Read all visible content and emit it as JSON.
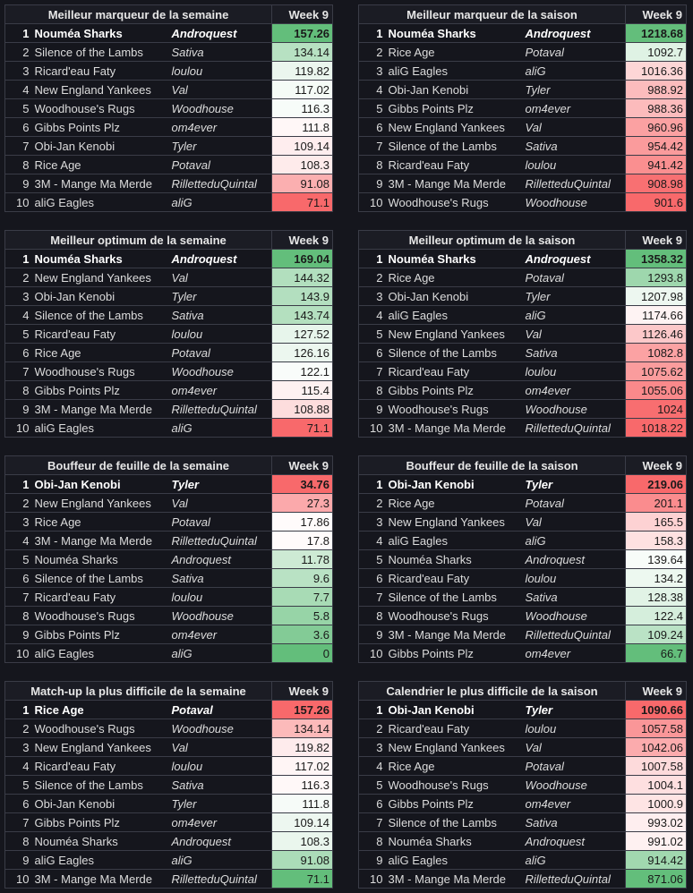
{
  "tables": [
    {
      "title": "Meilleur marqueur de la semaine",
      "week": "Week 9",
      "scale": "high-good",
      "rows": [
        {
          "rank": "1",
          "team": "Nouméa Sharks",
          "owner": "Androquest",
          "score": "157.26"
        },
        {
          "rank": "2",
          "team": "Silence of the Lambs",
          "owner": "Sativa",
          "score": "134.14"
        },
        {
          "rank": "3",
          "team": "Ricard'eau Faty",
          "owner": "loulou",
          "score": "119.82"
        },
        {
          "rank": "4",
          "team": "New England Yankees",
          "owner": "Val",
          "score": "117.02"
        },
        {
          "rank": "5",
          "team": "Woodhouse's Rugs",
          "owner": "Woodhouse",
          "score": "116.3"
        },
        {
          "rank": "6",
          "team": "Gibbs Points Plz",
          "owner": "om4ever",
          "score": "111.8"
        },
        {
          "rank": "7",
          "team": "Obi-Jan Kenobi",
          "owner": "Tyler",
          "score": "109.14"
        },
        {
          "rank": "8",
          "team": "Rice Age",
          "owner": "Potaval",
          "score": "108.3"
        },
        {
          "rank": "9",
          "team": "3M - Mange Ma Merde",
          "owner": "RilletteduQuintal",
          "score": "91.08"
        },
        {
          "rank": "10",
          "team": "aliG Eagles",
          "owner": "aliG",
          "score": "71.1"
        }
      ]
    },
    {
      "title": "Meilleur marqueur de la saison",
      "week": "Week 9",
      "scale": "high-good",
      "rows": [
        {
          "rank": "1",
          "team": "Nouméa Sharks",
          "owner": "Androquest",
          "score": "1218.68"
        },
        {
          "rank": "2",
          "team": "Rice Age",
          "owner": "Potaval",
          "score": "1092.7"
        },
        {
          "rank": "3",
          "team": "aliG Eagles",
          "owner": "aliG",
          "score": "1016.36"
        },
        {
          "rank": "4",
          "team": "Obi-Jan Kenobi",
          "owner": "Tyler",
          "score": "988.92"
        },
        {
          "rank": "5",
          "team": "Gibbs Points Plz",
          "owner": "om4ever",
          "score": "988.36"
        },
        {
          "rank": "6",
          "team": "New England Yankees",
          "owner": "Val",
          "score": "960.96"
        },
        {
          "rank": "7",
          "team": "Silence of the Lambs",
          "owner": "Sativa",
          "score": "954.42"
        },
        {
          "rank": "8",
          "team": "Ricard'eau Faty",
          "owner": "loulou",
          "score": "941.42"
        },
        {
          "rank": "9",
          "team": "3M - Mange Ma Merde",
          "owner": "RilletteduQuintal",
          "score": "908.98"
        },
        {
          "rank": "10",
          "team": "Woodhouse's Rugs",
          "owner": "Woodhouse",
          "score": "901.6"
        }
      ]
    },
    {
      "title": "Meilleur optimum de la semaine",
      "week": "Week 9",
      "scale": "high-good",
      "rows": [
        {
          "rank": "1",
          "team": "Nouméa Sharks",
          "owner": "Androquest",
          "score": "169.04"
        },
        {
          "rank": "2",
          "team": "New England Yankees",
          "owner": "Val",
          "score": "144.32"
        },
        {
          "rank": "3",
          "team": "Obi-Jan Kenobi",
          "owner": "Tyler",
          "score": "143.9"
        },
        {
          "rank": "4",
          "team": "Silence of the Lambs",
          "owner": "Sativa",
          "score": "143.74"
        },
        {
          "rank": "5",
          "team": "Ricard'eau Faty",
          "owner": "loulou",
          "score": "127.52"
        },
        {
          "rank": "6",
          "team": "Rice Age",
          "owner": "Potaval",
          "score": "126.16"
        },
        {
          "rank": "7",
          "team": "Woodhouse's Rugs",
          "owner": "Woodhouse",
          "score": "122.1"
        },
        {
          "rank": "8",
          "team": "Gibbs Points Plz",
          "owner": "om4ever",
          "score": "115.4"
        },
        {
          "rank": "9",
          "team": "3M - Mange Ma Merde",
          "owner": "RilletteduQuintal",
          "score": "108.88"
        },
        {
          "rank": "10",
          "team": "aliG Eagles",
          "owner": "aliG",
          "score": "71.1"
        }
      ]
    },
    {
      "title": "Meilleur optimum de la saison",
      "week": "Week 9",
      "scale": "high-good",
      "rows": [
        {
          "rank": "1",
          "team": "Nouméa Sharks",
          "owner": "Androquest",
          "score": "1358.32"
        },
        {
          "rank": "2",
          "team": "Rice Age",
          "owner": "Potaval",
          "score": "1293.8"
        },
        {
          "rank": "3",
          "team": "Obi-Jan Kenobi",
          "owner": "Tyler",
          "score": "1207.98"
        },
        {
          "rank": "4",
          "team": "aliG Eagles",
          "owner": "aliG",
          "score": "1174.66"
        },
        {
          "rank": "5",
          "team": "New England Yankees",
          "owner": "Val",
          "score": "1126.46"
        },
        {
          "rank": "6",
          "team": "Silence of the Lambs",
          "owner": "Sativa",
          "score": "1082.8"
        },
        {
          "rank": "7",
          "team": "Ricard'eau Faty",
          "owner": "loulou",
          "score": "1075.62"
        },
        {
          "rank": "8",
          "team": "Gibbs Points Plz",
          "owner": "om4ever",
          "score": "1055.06"
        },
        {
          "rank": "9",
          "team": "Woodhouse's Rugs",
          "owner": "Woodhouse",
          "score": "1024"
        },
        {
          "rank": "10",
          "team": "3M - Mange Ma Merde",
          "owner": "RilletteduQuintal",
          "score": "1018.22"
        }
      ]
    },
    {
      "title": "Bouffeur de feuille de la semaine",
      "week": "Week 9",
      "scale": "high-bad",
      "rows": [
        {
          "rank": "1",
          "team": "Obi-Jan Kenobi",
          "owner": "Tyler",
          "score": "34.76"
        },
        {
          "rank": "2",
          "team": "New England Yankees",
          "owner": "Val",
          "score": "27.3"
        },
        {
          "rank": "3",
          "team": "Rice Age",
          "owner": "Potaval",
          "score": "17.86"
        },
        {
          "rank": "4",
          "team": "3M - Mange Ma Merde",
          "owner": "RilletteduQuintal",
          "score": "17.8"
        },
        {
          "rank": "5",
          "team": "Nouméa Sharks",
          "owner": "Androquest",
          "score": "11.78"
        },
        {
          "rank": "6",
          "team": "Silence of the Lambs",
          "owner": "Sativa",
          "score": "9.6"
        },
        {
          "rank": "7",
          "team": "Ricard'eau Faty",
          "owner": "loulou",
          "score": "7.7"
        },
        {
          "rank": "8",
          "team": "Woodhouse's Rugs",
          "owner": "Woodhouse",
          "score": "5.8"
        },
        {
          "rank": "9",
          "team": "Gibbs Points Plz",
          "owner": "om4ever",
          "score": "3.6"
        },
        {
          "rank": "10",
          "team": "aliG Eagles",
          "owner": "aliG",
          "score": "0"
        }
      ]
    },
    {
      "title": "Bouffeur de feuille de la saison",
      "week": "Week 9",
      "scale": "high-bad",
      "rows": [
        {
          "rank": "1",
          "team": "Obi-Jan Kenobi",
          "owner": "Tyler",
          "score": "219.06"
        },
        {
          "rank": "2",
          "team": "Rice Age",
          "owner": "Potaval",
          "score": "201.1"
        },
        {
          "rank": "3",
          "team": "New England Yankees",
          "owner": "Val",
          "score": "165.5"
        },
        {
          "rank": "4",
          "team": "aliG Eagles",
          "owner": "aliG",
          "score": "158.3"
        },
        {
          "rank": "5",
          "team": "Nouméa Sharks",
          "owner": "Androquest",
          "score": "139.64"
        },
        {
          "rank": "6",
          "team": "Ricard'eau Faty",
          "owner": "loulou",
          "score": "134.2"
        },
        {
          "rank": "7",
          "team": "Silence of the Lambs",
          "owner": "Sativa",
          "score": "128.38"
        },
        {
          "rank": "8",
          "team": "Woodhouse's Rugs",
          "owner": "Woodhouse",
          "score": "122.4"
        },
        {
          "rank": "9",
          "team": "3M - Mange Ma Merde",
          "owner": "RilletteduQuintal",
          "score": "109.24"
        },
        {
          "rank": "10",
          "team": "Gibbs Points Plz",
          "owner": "om4ever",
          "score": "66.7"
        }
      ]
    },
    {
      "title": "Match-up la plus difficile de la semaine",
      "week": "Week 9",
      "scale": "high-bad",
      "rows": [
        {
          "rank": "1",
          "team": "Rice Age",
          "owner": "Potaval",
          "score": "157.26"
        },
        {
          "rank": "2",
          "team": "Woodhouse's Rugs",
          "owner": "Woodhouse",
          "score": "134.14"
        },
        {
          "rank": "3",
          "team": "New England Yankees",
          "owner": "Val",
          "score": "119.82"
        },
        {
          "rank": "4",
          "team": "Ricard'eau Faty",
          "owner": "loulou",
          "score": "117.02"
        },
        {
          "rank": "5",
          "team": "Silence of the Lambs",
          "owner": "Sativa",
          "score": "116.3"
        },
        {
          "rank": "6",
          "team": "Obi-Jan Kenobi",
          "owner": "Tyler",
          "score": "111.8"
        },
        {
          "rank": "7",
          "team": "Gibbs Points Plz",
          "owner": "om4ever",
          "score": "109.14"
        },
        {
          "rank": "8",
          "team": "Nouméa Sharks",
          "owner": "Androquest",
          "score": "108.3"
        },
        {
          "rank": "9",
          "team": "aliG Eagles",
          "owner": "aliG",
          "score": "91.08"
        },
        {
          "rank": "10",
          "team": "3M - Mange Ma Merde",
          "owner": "RilletteduQuintal",
          "score": "71.1"
        }
      ]
    },
    {
      "title": "Calendrier le plus difficile de la saison",
      "week": "Week 9",
      "scale": "high-bad",
      "rows": [
        {
          "rank": "1",
          "team": "Obi-Jan Kenobi",
          "owner": "Tyler",
          "score": "1090.66"
        },
        {
          "rank": "2",
          "team": "Ricard'eau Faty",
          "owner": "loulou",
          "score": "1057.58"
        },
        {
          "rank": "3",
          "team": "New England Yankees",
          "owner": "Val",
          "score": "1042.06"
        },
        {
          "rank": "4",
          "team": "Rice Age",
          "owner": "Potaval",
          "score": "1007.58"
        },
        {
          "rank": "5",
          "team": "Woodhouse's Rugs",
          "owner": "Woodhouse",
          "score": "1004.1"
        },
        {
          "rank": "6",
          "team": "Gibbs Points Plz",
          "owner": "om4ever",
          "score": "1000.9"
        },
        {
          "rank": "7",
          "team": "Silence of the Lambs",
          "owner": "Sativa",
          "score": "993.02"
        },
        {
          "rank": "8",
          "team": "Nouméa Sharks",
          "owner": "Androquest",
          "score": "991.02"
        },
        {
          "rank": "9",
          "team": "aliG Eagles",
          "owner": "aliG",
          "score": "914.42"
        },
        {
          "rank": "10",
          "team": "3M - Mange Ma Merde",
          "owner": "RilletteduQuintal",
          "score": "871.06"
        }
      ]
    }
  ],
  "colors": {
    "green": "#63be7b",
    "white": "#ffffff",
    "red": "#f8696b"
  }
}
